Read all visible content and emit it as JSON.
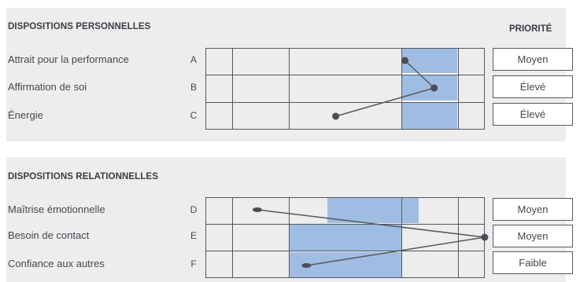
{
  "section_personal": {
    "title": "DISPOSITIONS PERSONNELLES",
    "priority_header": "PRIORITÉ",
    "rows": [
      {
        "label": "Attrait pour la performance",
        "letter": "A",
        "priority": "Moyen",
        "score": 7.5
      },
      {
        "label": "Affirmation de soi",
        "letter": "B",
        "priority": "Élevé",
        "score": 8.6
      },
      {
        "label": "Énergie",
        "letter": "C",
        "priority": "Élevé",
        "score": 4.9
      }
    ]
  },
  "section_relational": {
    "title": "DISPOSITIONS RELATIONNELLES",
    "rows": [
      {
        "label": "Maîtrise émotionnelle",
        "letter": "D",
        "priority": "Moyen",
        "score": 1.95
      },
      {
        "label": "Besoin de contact",
        "letter": "E",
        "priority": "Moyen",
        "score": 10.5
      },
      {
        "label": "Confiance aux autres",
        "letter": "F",
        "priority": "Faible",
        "score": 3.8
      }
    ]
  },
  "colors": {
    "panel_bg": "#ededee",
    "range_fill": "#9fbde3",
    "line": "#55585e",
    "marker": "#4b4e55"
  }
}
